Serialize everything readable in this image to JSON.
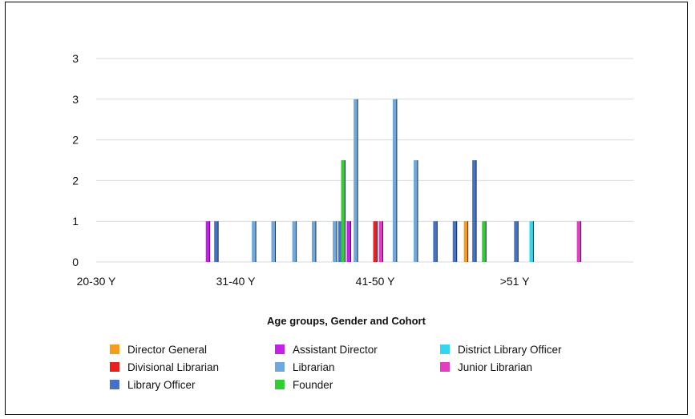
{
  "chart_data": {
    "type": "bar",
    "title": "",
    "xlabel": "Age groups, Gender and Cohort",
    "ylabel": "",
    "y_tick_labels": [
      "0",
      "1",
      "2",
      "2",
      "3",
      "3"
    ],
    "y_range": [
      0,
      2.5
    ],
    "grid": true,
    "legend_position": "bottom",
    "x_group_labels": [
      "20-30 Y",
      "31-40 Y",
      "41-50 Y",
      ">51 Y"
    ],
    "x_range": [
      0,
      3.85
    ],
    "series": [
      {
        "name": "Director General",
        "color": "#f39c1d"
      },
      {
        "name": "Divisional Librarian",
        "color": "#e8211e"
      },
      {
        "name": "Library Officer",
        "color": "#4472c4"
      },
      {
        "name": "Assistant Director",
        "color": "#c51fe8"
      },
      {
        "name": "Librarian",
        "color": "#6fa8dc"
      },
      {
        "name": "Founder",
        "color": "#33cc33"
      },
      {
        "name": "District Library Officer",
        "color": "#33d6ee"
      },
      {
        "name": "Junior Librarian",
        "color": "#e53dc0"
      }
    ],
    "bars": [
      {
        "x": 0.8,
        "value": 0.5,
        "series": "Assistant Director"
      },
      {
        "x": 0.86,
        "value": 0.5,
        "series": "Library Officer"
      },
      {
        "x": 1.13,
        "value": 0.5,
        "series": "Librarian"
      },
      {
        "x": 1.27,
        "value": 0.5,
        "series": "Librarian"
      },
      {
        "x": 1.42,
        "value": 0.5,
        "series": "Librarian"
      },
      {
        "x": 1.56,
        "value": 0.5,
        "series": "Librarian"
      },
      {
        "x": 1.71,
        "value": 0.5,
        "series": "Librarian"
      },
      {
        "x": 1.75,
        "value": 0.5,
        "series": "Library Officer"
      },
      {
        "x": 1.77,
        "value": 1.25,
        "series": "Founder"
      },
      {
        "x": 1.81,
        "value": 0.5,
        "series": "Assistant Director"
      },
      {
        "x": 1.86,
        "value": 2.0,
        "series": "Librarian"
      },
      {
        "x": 2.0,
        "value": 0.5,
        "series": "Divisional Librarian"
      },
      {
        "x": 2.04,
        "value": 0.5,
        "series": "Junior Librarian"
      },
      {
        "x": 2.14,
        "value": 2.0,
        "series": "Librarian"
      },
      {
        "x": 2.29,
        "value": 1.25,
        "series": "Librarian"
      },
      {
        "x": 2.43,
        "value": 0.5,
        "series": "Library Officer"
      },
      {
        "x": 2.57,
        "value": 0.5,
        "series": "Library Officer"
      },
      {
        "x": 2.65,
        "value": 0.5,
        "series": "Director General"
      },
      {
        "x": 2.71,
        "value": 1.25,
        "series": "Library Officer"
      },
      {
        "x": 2.78,
        "value": 0.5,
        "series": "Founder"
      },
      {
        "x": 3.01,
        "value": 0.5,
        "series": "Library Officer"
      },
      {
        "x": 3.12,
        "value": 0.5,
        "series": "District Library Officer"
      },
      {
        "x": 3.46,
        "value": 0.5,
        "series": "Junior Librarian"
      }
    ]
  }
}
